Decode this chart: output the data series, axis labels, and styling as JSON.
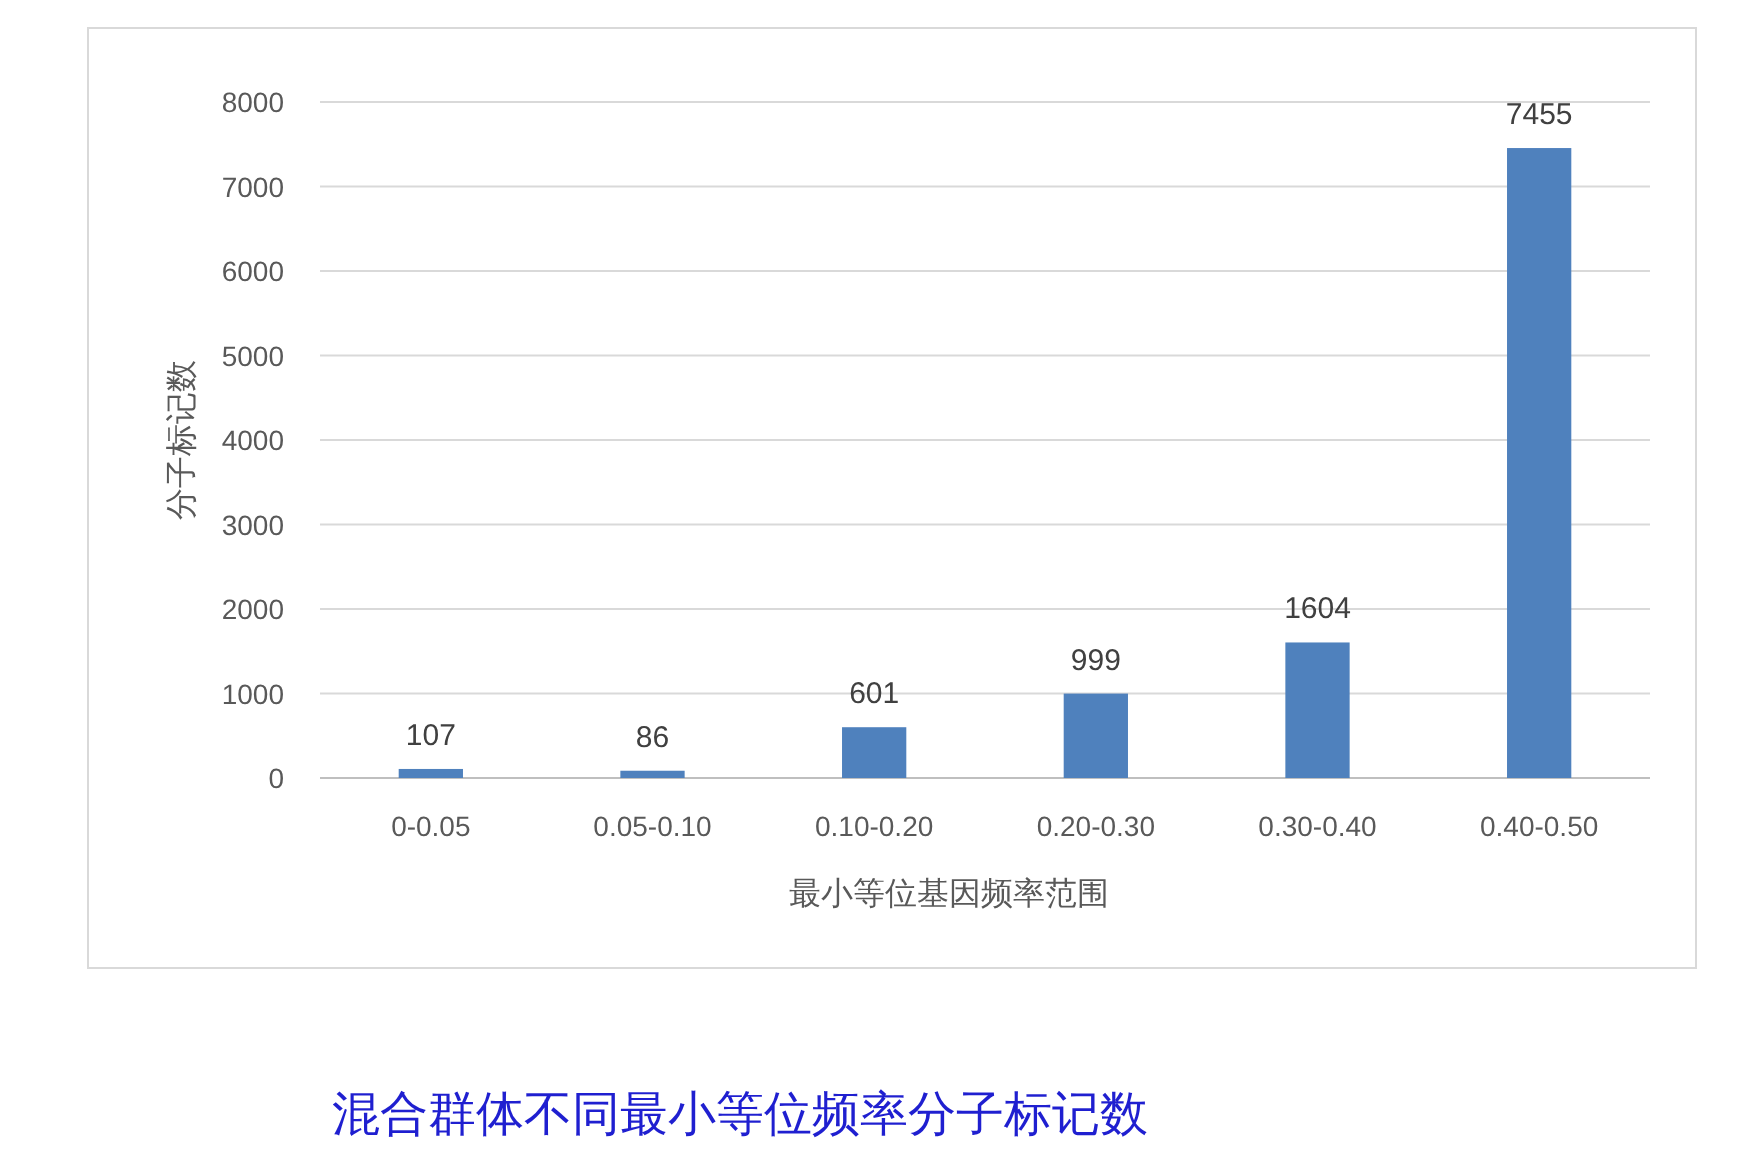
{
  "chart_data": {
    "type": "bar",
    "xlabel": "最小等位基因频率范围",
    "ylabel": "分子标记数",
    "annotations": [
      "混合群体不同最小等位频率分子标记数"
    ],
    "categories": [
      "0-0.05",
      "0.05-0.10",
      "0.10-0.20",
      "0.20-0.30",
      "0.30-0.40",
      "0.40-0.50"
    ],
    "values": [
      107,
      86,
      601,
      999,
      1604,
      7455
    ],
    "color": "#4f81bd",
    "ylim": [
      0,
      8000
    ],
    "yticks": [
      0,
      1000,
      2000,
      3000,
      4000,
      5000,
      6000,
      7000,
      8000
    ],
    "grid": "y",
    "data_labels": true
  }
}
